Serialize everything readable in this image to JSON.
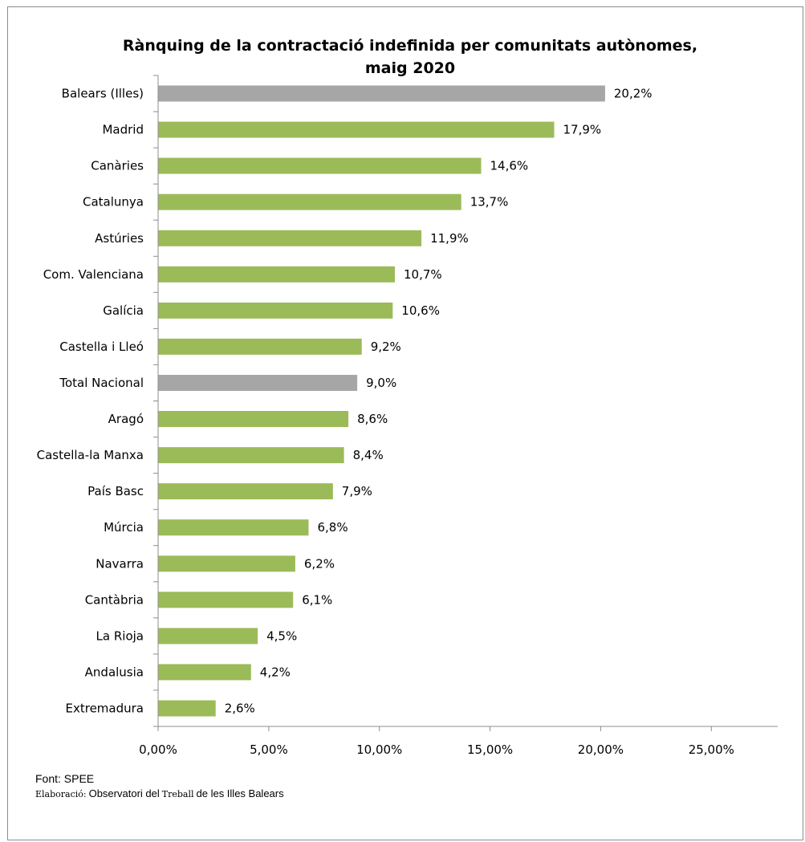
{
  "chart_data": {
    "type": "bar",
    "orientation": "horizontal",
    "title": "Rànquing de la contractació indefinida per comunitats autònomes, maig 2020",
    "title_lines": [
      "Rànquing de la contractació indefinida per comunitats autònomes,",
      "maig 2020"
    ],
    "categories": [
      "Balears (Illes)",
      "Madrid",
      "Canàries",
      "Catalunya",
      "Astúries",
      "Com. Valenciana",
      "Galícia",
      "Castella i Lleó",
      "Total Nacional",
      "Aragó",
      "Castella-la Manxa",
      "País Basc",
      "Múrcia",
      "Navarra",
      "Cantàbria",
      "La Rioja",
      "Andalusia",
      "Extremadura"
    ],
    "values": [
      20.2,
      17.9,
      14.6,
      13.7,
      11.9,
      10.7,
      10.6,
      9.2,
      9.0,
      8.6,
      8.4,
      7.9,
      6.8,
      6.2,
      6.1,
      4.5,
      4.2,
      2.6
    ],
    "value_labels": [
      "20,2%",
      "17,9%",
      "14,6%",
      "13,7%",
      "11,9%",
      "10,7%",
      "10,6%",
      "9,2%",
      "9,0%",
      "8,6%",
      "8,4%",
      "7,9%",
      "6,8%",
      "6,2%",
      "6,1%",
      "4,5%",
      "4,2%",
      "2,6%"
    ],
    "highlighted": [
      "Balears (Illes)",
      "Total Nacional"
    ],
    "xlim": [
      0,
      28
    ],
    "xticks": [
      0,
      5,
      10,
      15,
      20,
      25
    ],
    "xtick_labels": [
      "0,00%",
      "5,00%",
      "10,00%",
      "15,00%",
      "20,00%",
      "25,00%"
    ],
    "xlabel": "",
    "ylabel": "",
    "grid": false,
    "legend": "none",
    "colors": {
      "bar": "#9bbb59",
      "highlight": "#a6a6a6",
      "axis": "#8c8c8c"
    }
  },
  "source": {
    "font_label": "Font: SPEE",
    "elaboracio_prefix": "Elaboració:",
    "elaboracio_text": "Observatori del",
    "elaboracio_word": "Treball",
    "elaboracio_suffix": "de les Illes Balears"
  }
}
